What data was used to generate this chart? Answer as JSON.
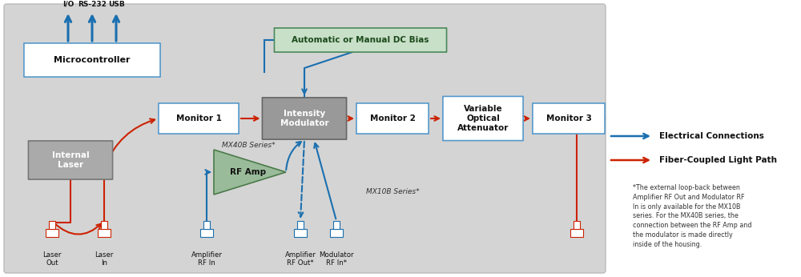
{
  "bg_color": "#d4d4d4",
  "white_bg": "#ffffff",
  "blue_color": "#1a6faf",
  "red_color": "#cc2200",
  "dc_bias_bg": "#c8dfc8",
  "dc_bias_border": "#4a8a5a",
  "gray_box_bg": "#999999",
  "gray_box_border": "#777777",
  "int_laser_bg": "#aaaaaa",
  "white_box_border": "#5599cc",
  "rfamp_bg": "#9abb9a",
  "rfamp_border": "#4a7a4a",
  "microcontroller_label": "Microcontroller",
  "io_labels": [
    "I/O",
    "RS-232",
    "USB"
  ],
  "dc_bias_label": "Automatic or Manual DC Bias",
  "monitor1_label": "Monitor 1",
  "intensity_mod_label": "Intensity\nModulator",
  "monitor2_label": "Monitor 2",
  "voa_label": "Variable\nOptical\nAttenuator",
  "monitor3_label": "Monitor 3",
  "internal_laser_label": "Internal\nLaser",
  "rfamp_label": "RF Amp",
  "mx40b_label": "MX40B Series*",
  "mx10b_label": "MX10B Series*",
  "legend_elec": "Electrical Connections",
  "legend_fiber": "Fiber-Coupled Light Path",
  "footnote": "*The external loop-back between\nAmplifier RF Out and Modulator RF\nIn is only available for the MX10B\nseries. For the MX40B series, the\nconnection between the RF Amp and\nthe modulator is made directly\ninside of the housing."
}
